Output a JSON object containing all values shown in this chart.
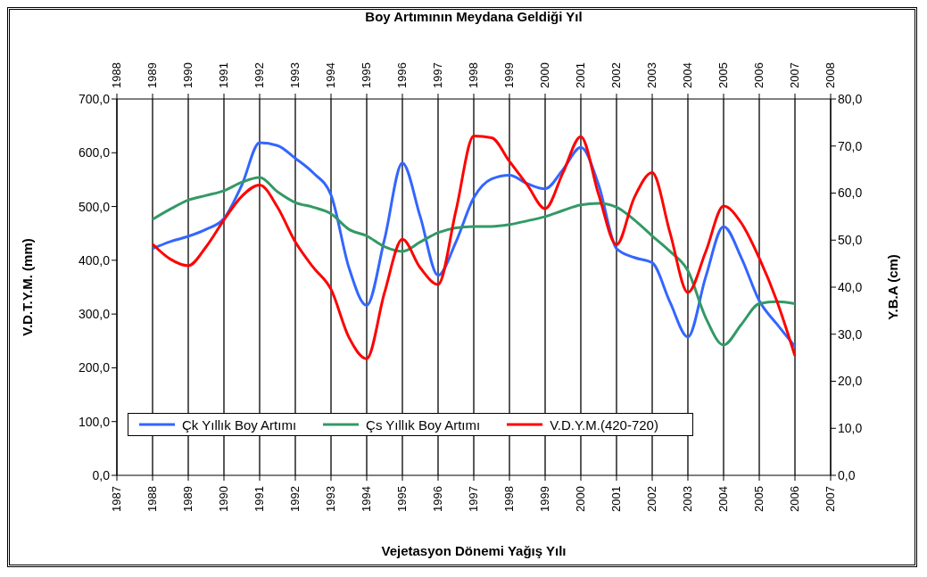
{
  "chart_data": {
    "type": "line",
    "x2label": "Boy Artımının Meydana Geldiği Yıl",
    "xlabel": "Vejetasyon Dönemi Yağış Yılı",
    "ylabel": "V.D.T.Y.M. (mm)",
    "y2label": "Y.B.A (cm)",
    "x": [
      1988,
      1988.5,
      1989,
      1989.5,
      1990,
      1990.5,
      1991,
      1991.5,
      1992,
      1992.5,
      1993,
      1993.5,
      1994,
      1994.5,
      1995,
      1995.5,
      1996,
      1996.5,
      1997,
      1997.5,
      1998,
      1998.5,
      1999,
      1999.5,
      2000,
      2000.5,
      2001,
      2001.5,
      2002,
      2002.5,
      2003,
      2003.5,
      2004,
      2004.5,
      2005,
      2005.5,
      2006
    ],
    "series": [
      {
        "name": "Çk Yıllık Boy Artımı",
        "color": "#3366ff",
        "axis": "y2",
        "values": [
          48.2,
          49.7,
          50.8,
          52.3,
          54.6,
          61.7,
          70.7,
          70.1,
          67.4,
          64.3,
          59.6,
          44.2,
          36.1,
          50.2,
          66.4,
          55.0,
          42.5,
          49.6,
          59.0,
          63.0,
          63.8,
          62.0,
          60.9,
          65.0,
          69.7,
          61.7,
          48.2,
          46.3,
          45.2,
          36.8,
          29.4,
          42.2,
          52.9,
          46.2,
          37.1,
          32.1,
          27.4
        ]
      },
      {
        "name": "Çs Yıllık Boy Artımı",
        "color": "#339966",
        "axis": "y2",
        "values": [
          54.4,
          56.6,
          58.5,
          59.5,
          60.5,
          62.3,
          63.3,
          60.3,
          58.0,
          57.0,
          55.6,
          52.3,
          50.9,
          48.6,
          47.6,
          49.6,
          51.6,
          52.6,
          52.9,
          52.9,
          53.3,
          54.1,
          55.0,
          56.3,
          57.5,
          57.8,
          57.0,
          54.3,
          50.9,
          47.6,
          43.5,
          33.5,
          27.7,
          32.1,
          36.5,
          36.9,
          36.5
        ]
      },
      {
        "name": "V.D.Y.M.(420-720)",
        "color": "#ff0000",
        "values": [
          430,
          402,
          390,
          425,
          475,
          519,
          540,
          499,
          434,
          387,
          346,
          257,
          217,
          340,
          439,
          386,
          355,
          492,
          631,
          628,
          584,
          540,
          496,
          563,
          630,
          522,
          429,
          517,
          563,
          451,
          340,
          416,
          501,
          469,
          404,
          323,
          222
        ]
      }
    ],
    "xlim": [
      1987,
      2007
    ],
    "xticks": [
      1987,
      1988,
      1989,
      1990,
      1991,
      1992,
      1993,
      1994,
      1995,
      1996,
      1997,
      1998,
      1999,
      2000,
      2001,
      2002,
      2003,
      2004,
      2005,
      2006,
      2007
    ],
    "x2lim": [
      1988,
      2008
    ],
    "x2ticks": [
      1988,
      1989,
      1990,
      1991,
      1992,
      1993,
      1994,
      1995,
      1996,
      1997,
      1998,
      1999,
      2000,
      2001,
      2002,
      2003,
      2004,
      2005,
      2006,
      2007,
      2008
    ],
    "ylim": [
      0,
      700
    ],
    "yticks": [
      {
        "value": 0,
        "label": "0,0"
      },
      {
        "value": 100,
        "label": "100,0"
      },
      {
        "value": 200,
        "label": "200,0"
      },
      {
        "value": 300,
        "label": "300,0"
      },
      {
        "value": 400,
        "label": "400,0"
      },
      {
        "value": 500,
        "label": "500,0"
      },
      {
        "value": 600,
        "label": "600,0"
      },
      {
        "value": 700,
        "label": "700,0"
      }
    ],
    "y2lim": [
      0,
      80
    ],
    "y2ticks": [
      {
        "value": 0,
        "label": "0,0"
      },
      {
        "value": 10,
        "label": "10,0"
      },
      {
        "value": 20,
        "label": "20,0"
      },
      {
        "value": 30,
        "label": "30,0"
      },
      {
        "value": 40,
        "label": "40,0"
      },
      {
        "value": 50,
        "label": "50,0"
      },
      {
        "value": 60,
        "label": "60,0"
      },
      {
        "value": 70,
        "label": "70,0"
      },
      {
        "value": 80,
        "label": "80,0"
      }
    ],
    "grid": "x",
    "legend": "bottom",
    "marker": "none",
    "line_style": "solid"
  }
}
